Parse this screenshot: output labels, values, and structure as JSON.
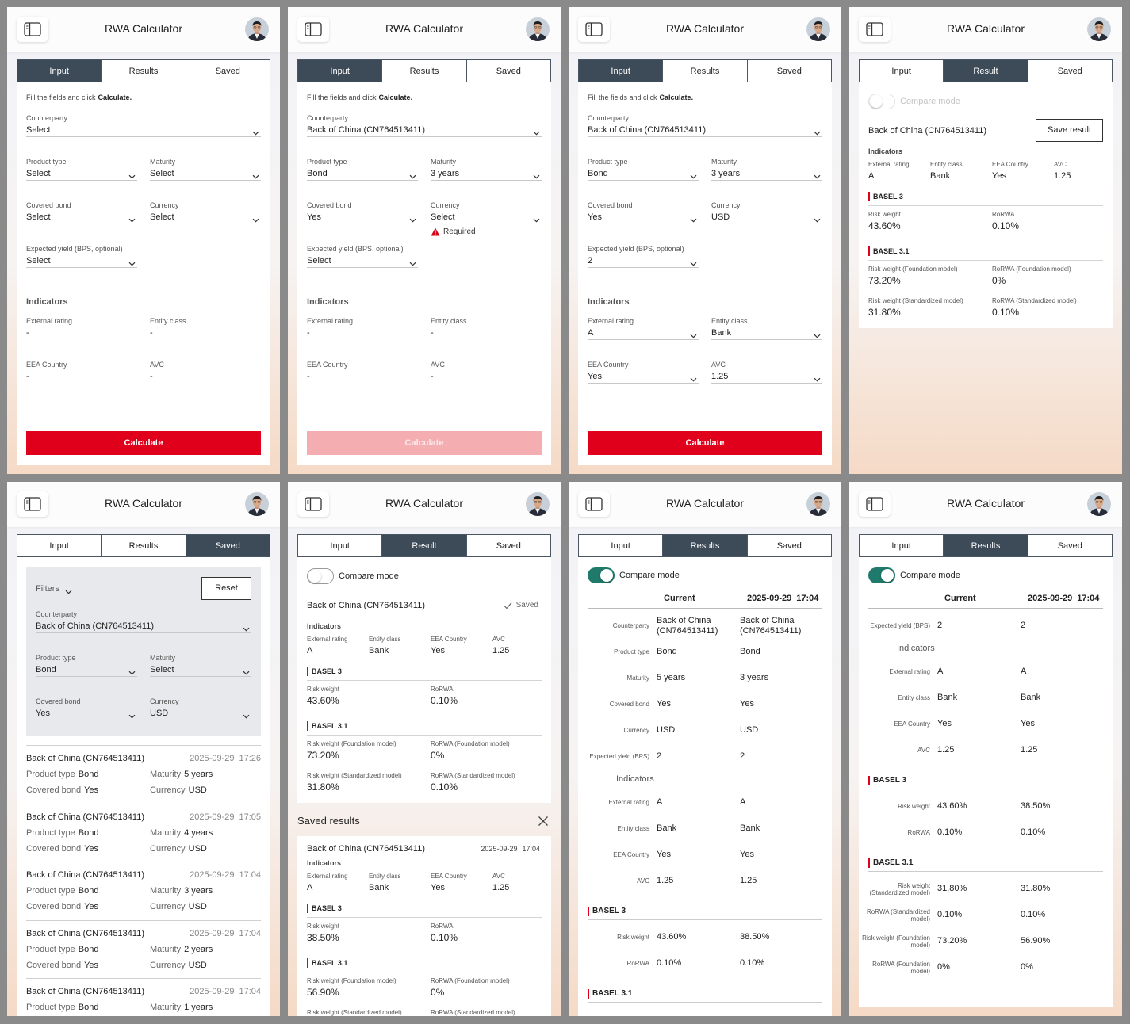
{
  "app_title": "RWA Calculator",
  "panels": [
    {
      "tabs": [
        "Input",
        "Results",
        "Saved"
      ],
      "active_tab": 0,
      "form": {
        "hint": "Fill the fields and click",
        "hint_bold": "Calculate.",
        "rows": [
          [
            {
              "label": "Counterparty",
              "value": "Select"
            }
          ],
          [
            {
              "label": "Product type",
              "value": "Select"
            },
            {
              "label": "Maturity",
              "value": "Select"
            }
          ],
          [
            {
              "label": "Covered bond",
              "value": "Select"
            },
            {
              "label": "Currency",
              "value": "Select"
            }
          ],
          [
            {
              "label": "Expected yield (BPS, optional)",
              "value": "Select"
            }
          ]
        ],
        "indicators_title": "Indicators",
        "indicators_editable": false,
        "indicator_rows": [
          [
            {
              "label": "External rating",
              "value": "-"
            },
            {
              "label": "Entity class",
              "value": "-"
            }
          ],
          [
            {
              "label": "EEA Country",
              "value": "-"
            },
            {
              "label": "AVC",
              "value": "-"
            }
          ]
        ],
        "button": "Calculate",
        "button_disabled": false
      }
    },
    {
      "tabs": [
        "Input",
        "Results",
        "Saved"
      ],
      "active_tab": 0,
      "form": {
        "hint": "Fill the fields and click",
        "hint_bold": "Calculate.",
        "rows": [
          [
            {
              "label": "Counterparty",
              "value": "Back of China (CN764513411)"
            }
          ],
          [
            {
              "label": "Product type",
              "value": "Bond"
            },
            {
              "label": "Maturity",
              "value": "3 years"
            }
          ],
          [
            {
              "label": "Covered bond",
              "value": "Yes"
            },
            {
              "label": "Currency",
              "value": "Select",
              "error": "Required"
            }
          ],
          [
            {
              "label": "Expected yield (BPS, optional)",
              "value": "Select"
            }
          ]
        ],
        "indicators_title": "Indicators",
        "indicators_editable": false,
        "indicator_rows": [
          [
            {
              "label": "External rating",
              "value": "-"
            },
            {
              "label": "Entity class",
              "value": "-"
            }
          ],
          [
            {
              "label": "EEA Country",
              "value": "-"
            },
            {
              "label": "AVC",
              "value": "-"
            }
          ]
        ],
        "button": "Calculate",
        "button_disabled": true
      }
    },
    {
      "tabs": [
        "Input",
        "Results",
        "Saved"
      ],
      "active_tab": 0,
      "form": {
        "hint": "Fill the fields and click",
        "hint_bold": "Calculate.",
        "rows": [
          [
            {
              "label": "Counterparty",
              "value": "Back of China (CN764513411)"
            }
          ],
          [
            {
              "label": "Product type",
              "value": "Bond"
            },
            {
              "label": "Maturity",
              "value": "3 years"
            }
          ],
          [
            {
              "label": "Covered bond",
              "value": "Yes"
            },
            {
              "label": "Currency",
              "value": "USD"
            }
          ],
          [
            {
              "label": "Expected yield (BPS, optional)",
              "value": "2"
            }
          ]
        ],
        "indicators_title": "Indicators",
        "indicators_editable": true,
        "indicator_rows": [
          [
            {
              "label": "External rating",
              "value": "A"
            },
            {
              "label": "Entity class",
              "value": "Bank"
            }
          ],
          [
            {
              "label": "EEA Country",
              "value": "Yes"
            },
            {
              "label": "AVC",
              "value": "1.25"
            }
          ]
        ],
        "button": "Calculate",
        "button_disabled": false
      }
    },
    {
      "tabs": [
        "Input",
        "Result",
        "Saved"
      ],
      "active_tab": 1,
      "result": {
        "compare_mode": "Compare mode",
        "compare_on": false,
        "compare_disabled": true,
        "counterparty": "Back of China (CN764513411)",
        "save_button": "Save result",
        "indicators_title": "Indicators",
        "indicators": [
          {
            "label": "External rating",
            "value": "A"
          },
          {
            "label": "Entity class",
            "value": "Bank"
          },
          {
            "label": "EEA Country",
            "value": "Yes"
          },
          {
            "label": "AVC",
            "value": "1.25"
          }
        ],
        "sections": [
          {
            "title": "BASEL 3",
            "items": [
              {
                "label": "Risk weight",
                "value": "43.60%"
              },
              {
                "label": "RoRWA",
                "value": "0.10%"
              }
            ]
          },
          {
            "title": "BASEL 3.1",
            "items": [
              {
                "label": "Risk weight (Foundation model)",
                "value": "73.20%"
              },
              {
                "label": "RoRWA (Foundation model)",
                "value": "0%"
              },
              {
                "label": "Risk weight (Standardized model)",
                "value": "31.80%"
              },
              {
                "label": "RoRWA (Standardized model)",
                "value": "0.10%"
              }
            ]
          }
        ]
      }
    },
    {
      "tabs": [
        "Input",
        "Results",
        "Saved"
      ],
      "active_tab": 2,
      "saved": {
        "filters": "Filters",
        "reset": "Reset",
        "filter_rows": [
          [
            {
              "label": "Counterparty",
              "value": "Back of China (CN764513411)"
            }
          ],
          [
            {
              "label": "Product type",
              "value": "Bond"
            },
            {
              "label": "Maturity",
              "value": "Select"
            }
          ],
          [
            {
              "label": "Covered bond",
              "value": "Yes"
            },
            {
              "label": "Currency",
              "value": "USD"
            }
          ]
        ],
        "items": [
          {
            "counterparty": "Back of China (CN764513411)",
            "date": "2025-09-29",
            "time": "17:26",
            "fields": [
              {
                "label": "Product type",
                "value": "Bond"
              },
              {
                "label": "Maturity",
                "value": "5 years"
              },
              {
                "label": "Covered bond",
                "value": "Yes"
              },
              {
                "label": "Currency",
                "value": "USD"
              }
            ]
          },
          {
            "counterparty": "Back of China (CN764513411)",
            "date": "2025-09-29",
            "time": "17:05",
            "fields": [
              {
                "label": "Product type",
                "value": "Bond"
              },
              {
                "label": "Maturity",
                "value": "4 years"
              },
              {
                "label": "Covered bond",
                "value": "Yes"
              },
              {
                "label": "Currency",
                "value": "USD"
              }
            ]
          },
          {
            "counterparty": "Back of China (CN764513411)",
            "date": "2025-09-29",
            "time": "17:04",
            "fields": [
              {
                "label": "Product type",
                "value": "Bond"
              },
              {
                "label": "Maturity",
                "value": "3 years"
              },
              {
                "label": "Covered bond",
                "value": "Yes"
              },
              {
                "label": "Currency",
                "value": "USD"
              }
            ]
          },
          {
            "counterparty": "Back of China (CN764513411)",
            "date": "2025-09-29",
            "time": "17:04",
            "fields": [
              {
                "label": "Product type",
                "value": "Bond"
              },
              {
                "label": "Maturity",
                "value": "2 years"
              },
              {
                "label": "Covered bond",
                "value": "Yes"
              },
              {
                "label": "Currency",
                "value": "USD"
              }
            ]
          },
          {
            "counterparty": "Back of China (CN764513411)",
            "date": "2025-09-29",
            "time": "17:04",
            "fields": [
              {
                "label": "Product type",
                "value": "Bond"
              },
              {
                "label": "Maturity",
                "value": "1 years"
              }
            ]
          }
        ]
      }
    },
    {
      "tabs": [
        "Input",
        "Result",
        "Saved"
      ],
      "active_tab": 1,
      "result": {
        "compare_mode": "Compare mode",
        "compare_on": false,
        "compare_disabled": false,
        "counterparty": "Back of China (CN764513411)",
        "saved_status": "Saved",
        "indicators_title": "Indicators",
        "indicators": [
          {
            "label": "External rating",
            "value": "A"
          },
          {
            "label": "Entity class",
            "value": "Bank"
          },
          {
            "label": "EEA Country",
            "value": "Yes"
          },
          {
            "label": "AVC",
            "value": "1.25"
          }
        ],
        "sections": [
          {
            "title": "BASEL 3",
            "items": [
              {
                "label": "Risk weight",
                "value": "43.60%"
              },
              {
                "label": "RoRWA",
                "value": "0.10%"
              }
            ]
          },
          {
            "title": "BASEL 3.1",
            "items": [
              {
                "label": "Risk weight (Foundation model)",
                "value": "73.20%"
              },
              {
                "label": "RoRWA (Foundation model)",
                "value": "0%"
              },
              {
                "label": "Risk weight (Standardized model)",
                "value": "31.80%"
              },
              {
                "label": "RoRWA (Standardized model)",
                "value": "0.10%"
              }
            ]
          }
        ]
      },
      "saved_results": {
        "title": "Saved results",
        "items": [
          {
            "counterparty": "Back of China (CN764513411)",
            "date": "2025-09-29",
            "time": "17:04",
            "indicators_title": "Indicators",
            "indicators": [
              {
                "label": "External rating",
                "value": "A"
              },
              {
                "label": "Entity class",
                "value": "Bank"
              },
              {
                "label": "EEA Country",
                "value": "Yes"
              },
              {
                "label": "AVC",
                "value": "1.25"
              }
            ],
            "sections": [
              {
                "title": "BASEL 3",
                "items": [
                  {
                    "label": "Risk weight",
                    "value": "38.50%"
                  },
                  {
                    "label": "RoRWA",
                    "value": "0.10%"
                  }
                ]
              },
              {
                "title": "BASEL 3.1",
                "items": [
                  {
                    "label": "Risk weight (Foundation model)",
                    "value": "56.90%"
                  },
                  {
                    "label": "RoRWA (Foundation model)",
                    "value": "0%"
                  },
                  {
                    "label": "Risk weight (Standardized model)"
                  },
                  {
                    "label": "RoRWA (Standardized model)"
                  }
                ]
              }
            ]
          }
        ]
      }
    },
    {
      "tabs": [
        "Input",
        "Results",
        "Saved"
      ],
      "active_tab": 1,
      "compare": {
        "compare_mode": "Compare mode",
        "compare_on": true,
        "current": "Current",
        "date": "2025-09-29",
        "time": "17:04",
        "rows": [
          {
            "label": "Counterparty",
            "values": [
              "Back of China (CN764513411)",
              "Back of China (CN764513411)"
            ]
          },
          {
            "label": "Product type",
            "values": [
              "Bond",
              "Bond"
            ]
          },
          {
            "label": "Maturity",
            "values": [
              "5 years",
              "3 years"
            ]
          },
          {
            "label": "Covered bond",
            "values": [
              "Yes",
              "Yes"
            ]
          },
          {
            "label": "Currency",
            "values": [
              "USD",
              "USD"
            ]
          },
          {
            "label": "Expected yield (BPS)",
            "values": [
              "2",
              "2"
            ]
          }
        ],
        "indicators_title": "Indicators",
        "indicator_rows": [
          {
            "label": "External rating",
            "values": [
              "A",
              "A"
            ]
          },
          {
            "label": "Entity class",
            "values": [
              "Bank",
              "Bank"
            ]
          },
          {
            "label": "EEA Country",
            "values": [
              "Yes",
              "Yes"
            ]
          },
          {
            "label": "AVC",
            "values": [
              "1.25",
              "1.25"
            ]
          }
        ],
        "sections": [
          {
            "title": "BASEL 3",
            "rows": [
              {
                "label": "Risk weight",
                "values": [
                  "43.60%",
                  "38.50%"
                ]
              },
              {
                "label": "RoRWA",
                "values": [
                  "0.10%",
                  "0.10%"
                ]
              }
            ]
          },
          {
            "title": "BASEL 3.1",
            "rows": []
          }
        ]
      }
    },
    {
      "tabs": [
        "Input",
        "Results",
        "Saved"
      ],
      "active_tab": 1,
      "compare": {
        "compare_mode": "Compare mode",
        "compare_on": true,
        "current": "Current",
        "date": "2025-09-29",
        "time": "17:04",
        "rows": [
          {
            "label": "Expected yield (BPS)",
            "values": [
              "2",
              "2"
            ]
          }
        ],
        "indicators_title": "Indicators",
        "indicator_rows": [
          {
            "label": "External rating",
            "values": [
              "A",
              "A"
            ]
          },
          {
            "label": "Entity class",
            "values": [
              "Bank",
              "Bank"
            ]
          },
          {
            "label": "EEA Country",
            "values": [
              "Yes",
              "Yes"
            ]
          },
          {
            "label": "AVC",
            "values": [
              "1.25",
              "1.25"
            ]
          }
        ],
        "sections": [
          {
            "title": "BASEL 3",
            "rows": [
              {
                "label": "Risk weight",
                "values": [
                  "43.60%",
                  "38.50%"
                ]
              },
              {
                "label": "RoRWA",
                "values": [
                  "0.10%",
                  "0.10%"
                ]
              }
            ]
          },
          {
            "title": "BASEL 3.1",
            "rows": [
              {
                "label": "Risk weight (Standardized model)",
                "values": [
                  "31.80%",
                  "31.80%"
                ]
              },
              {
                "label": "RoRWA (Standardized model)",
                "values": [
                  "0.10%",
                  "0.10%"
                ]
              },
              {
                "label": "Risk weight (Foundation model)",
                "values": [
                  "73.20%",
                  "56.90%"
                ]
              },
              {
                "label": "RoRWA (Foundation model)",
                "values": [
                  "0%",
                  "0%"
                ]
              }
            ]
          }
        ]
      }
    }
  ]
}
